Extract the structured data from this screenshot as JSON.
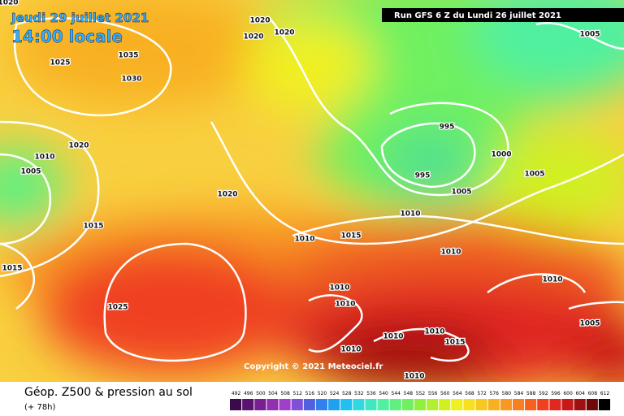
{
  "header": {
    "date": "Jeudi 29 juillet 2021",
    "time": "14:00 locale",
    "run": "Run GFS 6 Z du Lundi 26 juillet 2021"
  },
  "copyright": "Copyright © 2021 Meteociel.fr",
  "isobar_labels": [
    "1020",
    "1025",
    "1035",
    "1030",
    "1020",
    "1010",
    "1005",
    "1020",
    "1015",
    "1015",
    "1025",
    "1020",
    "1020",
    "1020",
    "1005",
    "995",
    "995",
    "1005",
    "1000",
    "1005",
    "1010",
    "1010",
    "1015",
    "1010",
    "1010",
    "1010",
    "1010",
    "1005",
    "1010",
    "1010",
    "1015",
    "1010",
    "1010"
  ],
  "legend": {
    "title": "Géop. Z500 & pression au sol",
    "lead": "(+ 78h)"
  },
  "colorbar": {
    "labels": [
      492,
      496,
      500,
      504,
      508,
      512,
      516,
      520,
      524,
      528,
      532,
      536,
      540,
      544,
      548,
      552,
      556,
      560,
      564,
      568,
      572,
      576,
      580,
      584,
      588,
      592,
      596,
      600,
      604,
      608,
      612
    ],
    "colors": [
      "#3c0a4a",
      "#5a1470",
      "#782090",
      "#9030b0",
      "#a040c8",
      "#8050d8",
      "#5060e0",
      "#3080f0",
      "#20a0f0",
      "#20c0f0",
      "#30d8e0",
      "#40e8c0",
      "#50f0a0",
      "#60f080",
      "#70f060",
      "#90f040",
      "#b0f030",
      "#d0f020",
      "#f0f020",
      "#f8e020",
      "#f8c820",
      "#f8b020",
      "#f89820",
      "#f88020",
      "#f86020",
      "#f04020",
      "#e02820",
      "#c81818",
      "#a01010",
      "#700808",
      "#000000"
    ]
  }
}
